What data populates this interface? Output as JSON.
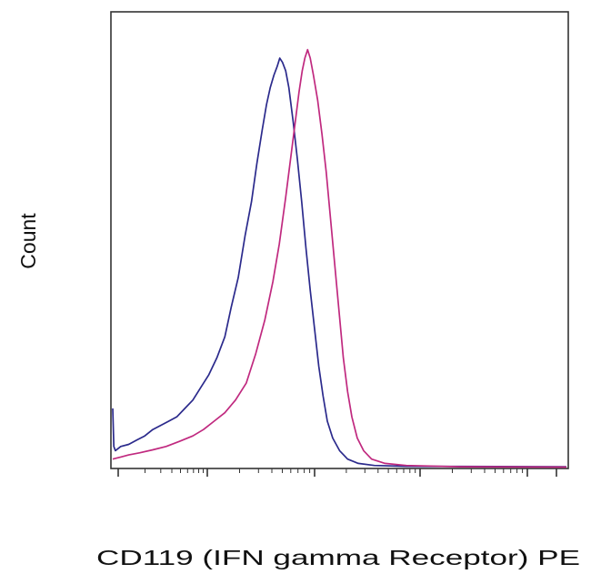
{
  "chart_data": {
    "type": "line",
    "title": "",
    "xlabel": "CD119 (IFN gamma Receptor) PE",
    "ylabel": "Count",
    "xscale": "log",
    "xlim": [
      0.15,
      1.0
    ],
    "ylim": [
      0,
      1.0
    ],
    "grid": false,
    "legend": "none",
    "series": [
      {
        "color": "#2b2a8c",
        "points": [
          [
            0.15,
            0.14
          ],
          [
            0.152,
            0.05
          ],
          [
            0.155,
            0.04
          ],
          [
            0.165,
            0.05
          ],
          [
            0.18,
            0.055
          ],
          [
            0.195,
            0.065
          ],
          [
            0.21,
            0.075
          ],
          [
            0.225,
            0.09
          ],
          [
            0.24,
            0.1
          ],
          [
            0.255,
            0.11
          ],
          [
            0.27,
            0.12
          ],
          [
            0.285,
            0.14
          ],
          [
            0.3,
            0.16
          ],
          [
            0.315,
            0.19
          ],
          [
            0.33,
            0.22
          ],
          [
            0.345,
            0.26
          ],
          [
            0.36,
            0.31
          ],
          [
            0.372,
            0.38
          ],
          [
            0.385,
            0.45
          ],
          [
            0.398,
            0.55
          ],
          [
            0.41,
            0.63
          ],
          [
            0.42,
            0.72
          ],
          [
            0.43,
            0.8
          ],
          [
            0.438,
            0.86
          ],
          [
            0.445,
            0.9
          ],
          [
            0.452,
            0.93
          ],
          [
            0.458,
            0.95
          ],
          [
            0.463,
            0.97
          ],
          [
            0.468,
            0.96
          ],
          [
            0.474,
            0.94
          ],
          [
            0.48,
            0.9
          ],
          [
            0.488,
            0.82
          ],
          [
            0.496,
            0.73
          ],
          [
            0.504,
            0.63
          ],
          [
            0.512,
            0.52
          ],
          [
            0.52,
            0.42
          ],
          [
            0.528,
            0.33
          ],
          [
            0.536,
            0.24
          ],
          [
            0.544,
            0.17
          ],
          [
            0.552,
            0.11
          ],
          [
            0.562,
            0.07
          ],
          [
            0.575,
            0.04
          ],
          [
            0.59,
            0.02
          ],
          [
            0.61,
            0.01
          ],
          [
            0.64,
            0.005
          ],
          [
            0.7,
            0.003
          ],
          [
            1.0,
            0.002
          ]
        ]
      },
      {
        "color": "#c0297f",
        "points": [
          [
            0.15,
            0.02
          ],
          [
            0.165,
            0.025
          ],
          [
            0.18,
            0.03
          ],
          [
            0.2,
            0.035
          ],
          [
            0.225,
            0.042
          ],
          [
            0.25,
            0.05
          ],
          [
            0.275,
            0.062
          ],
          [
            0.3,
            0.075
          ],
          [
            0.32,
            0.09
          ],
          [
            0.34,
            0.11
          ],
          [
            0.36,
            0.13
          ],
          [
            0.38,
            0.16
          ],
          [
            0.4,
            0.2
          ],
          [
            0.418,
            0.27
          ],
          [
            0.435,
            0.35
          ],
          [
            0.45,
            0.44
          ],
          [
            0.462,
            0.53
          ],
          [
            0.474,
            0.64
          ],
          [
            0.484,
            0.74
          ],
          [
            0.492,
            0.82
          ],
          [
            0.499,
            0.89
          ],
          [
            0.505,
            0.94
          ],
          [
            0.51,
            0.97
          ],
          [
            0.515,
            0.99
          ],
          [
            0.52,
            0.97
          ],
          [
            0.526,
            0.93
          ],
          [
            0.534,
            0.87
          ],
          [
            0.542,
            0.79
          ],
          [
            0.55,
            0.7
          ],
          [
            0.558,
            0.59
          ],
          [
            0.566,
            0.48
          ],
          [
            0.574,
            0.37
          ],
          [
            0.582,
            0.26
          ],
          [
            0.59,
            0.18
          ],
          [
            0.598,
            0.12
          ],
          [
            0.608,
            0.07
          ],
          [
            0.62,
            0.04
          ],
          [
            0.635,
            0.02
          ],
          [
            0.66,
            0.01
          ],
          [
            0.7,
            0.005
          ],
          [
            0.8,
            0.002
          ],
          [
            1.0,
            0.001
          ]
        ]
      }
    ]
  }
}
